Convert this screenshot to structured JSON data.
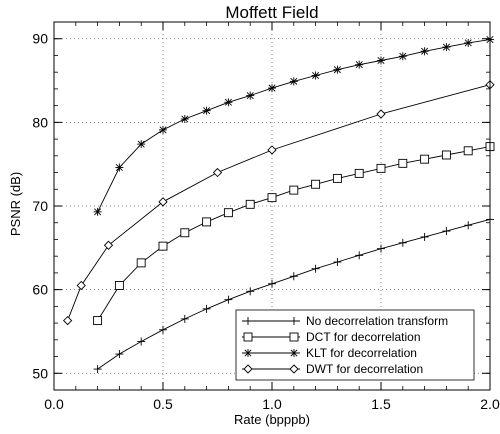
{
  "chart_data": {
    "type": "line",
    "title": "Moffett Field",
    "xlabel": "Rate (bpppb)",
    "ylabel": "PSNR (dB)",
    "xlim": [
      0.0,
      2.0
    ],
    "ylim": [
      48,
      92
    ],
    "xticks": [
      0.0,
      0.5,
      1.0,
      1.5,
      2.0
    ],
    "xtick_labels": [
      "0.0",
      "0.5",
      "1.0",
      "1.5",
      "2.0"
    ],
    "yticks": [
      50,
      60,
      70,
      80,
      90
    ],
    "ytick_labels": [
      "50",
      "60",
      "70",
      "80",
      "90"
    ],
    "grid": true,
    "grid_style": "dotted",
    "legend_position": "bottom-right",
    "series": [
      {
        "name": "No decorrelation transform",
        "marker": "plus",
        "x": [
          0.2,
          0.3,
          0.4,
          0.5,
          0.6,
          0.7,
          0.8,
          0.9,
          1.0,
          1.1,
          1.2,
          1.3,
          1.4,
          1.5,
          1.6,
          1.7,
          1.8,
          1.9,
          2.0
        ],
        "y": [
          50.5,
          52.3,
          53.8,
          55.2,
          56.5,
          57.7,
          58.8,
          59.8,
          60.7,
          61.6,
          62.5,
          63.3,
          64.1,
          64.9,
          65.6,
          66.3,
          67.0,
          67.7,
          68.4
        ]
      },
      {
        "name": "DCT for decorrelation",
        "marker": "square",
        "x": [
          0.2,
          0.3,
          0.4,
          0.5,
          0.6,
          0.7,
          0.8,
          0.9,
          1.0,
          1.1,
          1.2,
          1.3,
          1.4,
          1.5,
          1.6,
          1.7,
          1.8,
          1.9,
          2.0
        ],
        "y": [
          56.3,
          60.5,
          63.2,
          65.2,
          66.8,
          68.1,
          69.2,
          70.2,
          71.0,
          71.9,
          72.6,
          73.3,
          73.9,
          74.5,
          75.1,
          75.6,
          76.1,
          76.6,
          77.1
        ]
      },
      {
        "name": "KLT for decorrelation",
        "marker": "asterisk",
        "x": [
          0.2,
          0.3,
          0.4,
          0.5,
          0.6,
          0.7,
          0.8,
          0.9,
          1.0,
          1.1,
          1.2,
          1.3,
          1.4,
          1.5,
          1.6,
          1.7,
          1.8,
          1.9,
          2.0
        ],
        "y": [
          69.3,
          74.6,
          77.4,
          79.1,
          80.4,
          81.4,
          82.4,
          83.2,
          84.1,
          84.9,
          85.6,
          86.3,
          86.9,
          87.4,
          87.9,
          88.5,
          89.0,
          89.5,
          89.9
        ]
      },
      {
        "name": "DWT for decorrelation",
        "marker": "diamond",
        "x": [
          0.0625,
          0.125,
          0.25,
          0.5,
          0.75,
          1.0,
          1.5,
          2.0
        ],
        "y": [
          56.3,
          60.5,
          65.3,
          70.5,
          74.0,
          76.7,
          81.0,
          84.5
        ]
      }
    ]
  }
}
